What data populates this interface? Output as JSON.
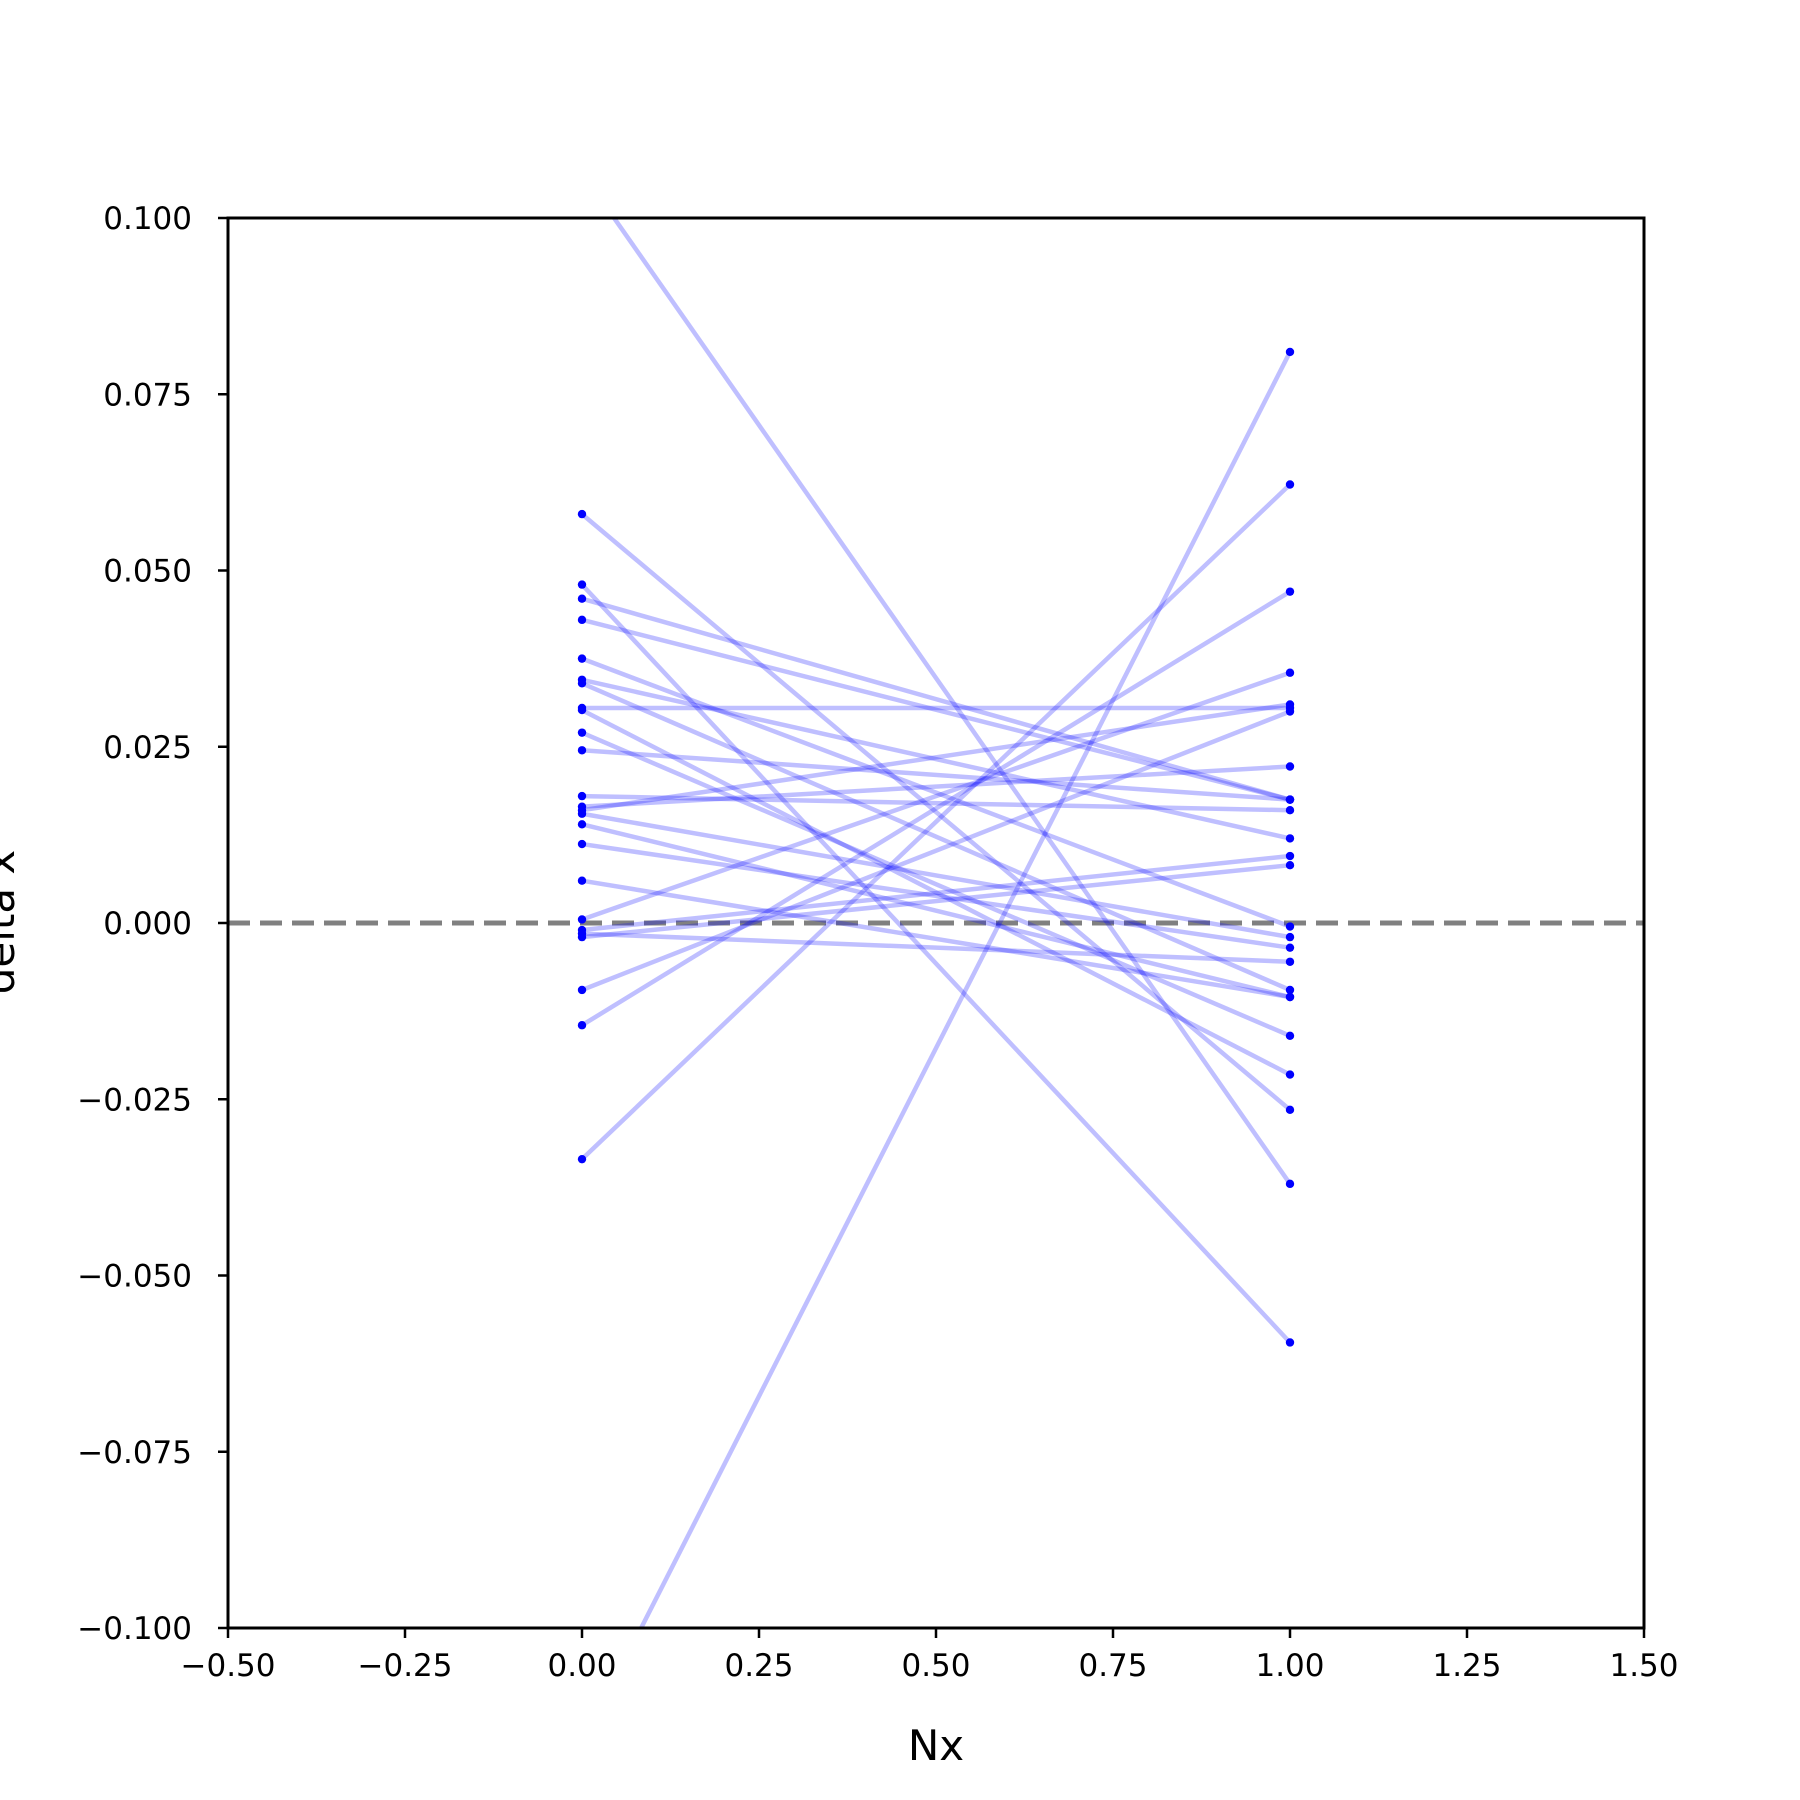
{
  "chart_data": {
    "type": "line",
    "title": "",
    "xlabel": "Nx",
    "ylabel": "delta x",
    "xlim": [
      -0.5,
      1.5
    ],
    "ylim": [
      -0.1,
      0.1
    ],
    "xticks": [
      "−0.50",
      "−0.25",
      "0.00",
      "0.25",
      "0.50",
      "0.75",
      "1.00",
      "1.25",
      "1.50"
    ],
    "yticks": [
      "−0.100",
      "−0.075",
      "−0.050",
      "−0.025",
      "0.000",
      "0.025",
      "0.050",
      "0.075",
      "0.100"
    ],
    "grid": false,
    "reference_line": {
      "y": 0,
      "style": "dashed",
      "color": "#808080"
    },
    "line_color": "#0000ff",
    "line_alpha": 0.25,
    "marker_color": "#0000ff",
    "pairs": [
      {
        "x": [
          0,
          1
        ],
        "y": [
          0.1065,
          -0.037
        ]
      },
      {
        "x": [
          0,
          1
        ],
        "y": [
          -0.1165,
          0.081
        ]
      },
      {
        "x": [
          0,
          1
        ],
        "y": [
          0.058,
          -0.0265
        ]
      },
      {
        "x": [
          0,
          1
        ],
        "y": [
          0.048,
          -0.0595
        ]
      },
      {
        "x": [
          0,
          1
        ],
        "y": [
          0.046,
          0.0175
        ]
      },
      {
        "x": [
          0,
          1
        ],
        "y": [
          0.043,
          0.0175
        ]
      },
      {
        "x": [
          0,
          1
        ],
        "y": [
          0.0375,
          -0.0005
        ]
      },
      {
        "x": [
          0,
          1
        ],
        "y": [
          0.0345,
          0.012
        ]
      },
      {
        "x": [
          0,
          1
        ],
        "y": [
          0.034,
          -0.0095
        ]
      },
      {
        "x": [
          0,
          1
        ],
        "y": [
          0.0305,
          0.0305
        ]
      },
      {
        "x": [
          0,
          1
        ],
        "y": [
          0.0302,
          -0.0215
        ]
      },
      {
        "x": [
          0,
          1
        ],
        "y": [
          0.027,
          -0.016
        ]
      },
      {
        "x": [
          0,
          1
        ],
        "y": [
          0.0245,
          0.0175
        ]
      },
      {
        "x": [
          0,
          1
        ],
        "y": [
          0.018,
          0.016
        ]
      },
      {
        "x": [
          0,
          1
        ],
        "y": [
          0.016,
          0.031
        ]
      },
      {
        "x": [
          0,
          1
        ],
        "y": [
          0.0155,
          -0.002
        ]
      },
      {
        "x": [
          0,
          1
        ],
        "y": [
          0.014,
          -0.0105
        ]
      },
      {
        "x": [
          0,
          1
        ],
        "y": [
          0.0112,
          -0.0035
        ]
      },
      {
        "x": [
          0,
          1
        ],
        "y": [
          0.006,
          -0.0105
        ]
      },
      {
        "x": [
          0,
          1
        ],
        "y": [
          0.0005,
          0.0355
        ]
      },
      {
        "x": [
          0,
          1
        ],
        "y": [
          -0.001,
          0.0095
        ]
      },
      {
        "x": [
          0,
          1
        ],
        "y": [
          -0.0015,
          -0.0055
        ]
      },
      {
        "x": [
          0,
          1
        ],
        "y": [
          -0.002,
          0.0082
        ]
      },
      {
        "x": [
          0,
          1
        ],
        "y": [
          -0.0095,
          0.03
        ]
      },
      {
        "x": [
          0,
          1
        ],
        "y": [
          -0.0145,
          0.047
        ]
      },
      {
        "x": [
          0,
          1
        ],
        "y": [
          -0.0335,
          0.0622
        ]
      },
      {
        "x": [
          0,
          1
        ],
        "y": [
          0.0165,
          0.0222
        ]
      }
    ]
  }
}
